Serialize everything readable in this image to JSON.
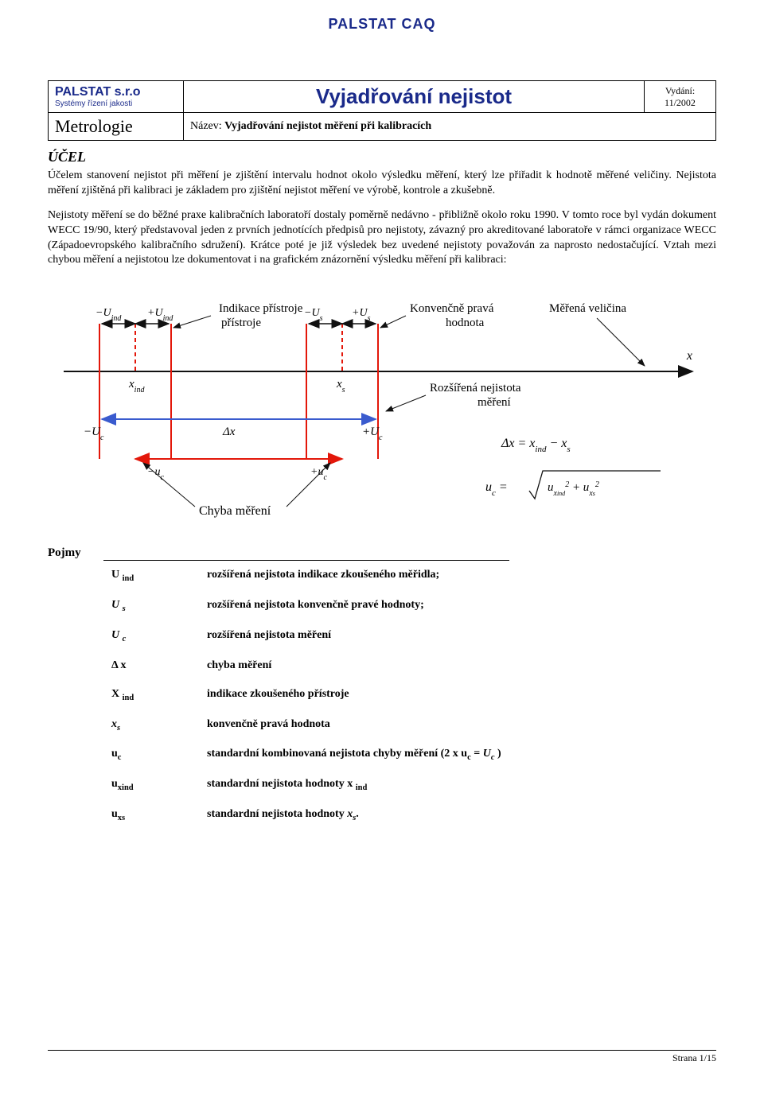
{
  "brand_header": "PALSTAT CAQ",
  "header": {
    "logo_company": "PALSTAT s.r.o",
    "logo_sub": "Systémy řízení jakosti",
    "doc_title": "Vyjadřování nejistot",
    "edition_label": "Vydání:",
    "edition_value": "11/2002",
    "metrologie": "Metrologie",
    "nazev_label": "Název:",
    "nazev_value": "Vyjadřování nejistot měření při kalibracích"
  },
  "sections": {
    "ucel_title": "ÚČEL",
    "ucel_p1": "Účelem stanovení nejistot při měření je zjištění intervalu hodnot okolo výsledku měření, který lze přiřadit k hodnotě měřené veličiny. Nejistota měření zjištěná při kalibraci je základem pro zjištění nejistot měření ve výrobě, kontrole a zkušebně.",
    "ucel_p2": "Nejistoty měření se do běžné praxe kalibračních laboratoří dostaly poměrně nedávno - přibližně okolo roku 1990. V tomto roce byl vydán dokument WECC 19/90, který představoval jeden z prvních jednotících předpisů pro nejistoty, závazný pro akreditované laboratoře v rámci organizace WECC (Západoevropského kalibračního sdružení). Krátce poté je již výsledek bez uvedené nejistoty považován za naprosto nedostačující. Vztah mezi chybou měření a nejistotou lze dokumentovat i na grafickém znázornění výsledku měření při kalibraci:"
  },
  "diagram": {
    "colors": {
      "red": "#e3170a",
      "blue": "#3a5bce",
      "black": "#111111",
      "gray": "#666666"
    },
    "labels": {
      "indikace_pristroje": "Indikace přístroje",
      "konvencne_prava_hodnota": "Konvenčně pravá hodnota",
      "merena_velicina": "Měřená veličina",
      "x_axis": "x",
      "x_ind": "x",
      "x_ind_sub": "ind",
      "x_s": "x",
      "x_s_sub": "s",
      "minus_Uind": "−U",
      "plus_Uind": "+U",
      "Uind_sub": "ind",
      "minus_Us": "−U",
      "plus_Us": "+U",
      "Us_sub": "s",
      "rozsirena_nejistota": "Rozšířená nejistota měření",
      "minus_Uc": "−U",
      "plus_Uc": "+U",
      "Uc_sub": "c",
      "delta_x": "Δx",
      "minus_uc": "−u",
      "plus_uc": "+u",
      "uc_sub": "c",
      "chyba_mereni": "Chyba měření",
      "eq_dx": "Δx = x",
      "eq_dx_ind": "ind",
      "eq_dx_mid": " − x",
      "eq_dx_s": "s",
      "eq_uc": "u",
      "eq_uc_c": "c",
      "eq_eq": " = ",
      "eq_sqrt_a": "u",
      "eq_sqrt_a_sub": "x",
      "eq_sqrt_a_subsub": "ind",
      "eq_sqrt_plus": " + ",
      "eq_sqrt_b": "u",
      "eq_sqrt_b_sub": "x",
      "eq_sqrt_b_subsub": "s",
      "eq_sq": "2"
    }
  },
  "pojmy_label": "Pojmy",
  "terms": [
    {
      "sym_html": "U <sub>ind</sub>",
      "desc": "rozšířená nejistota indikace zkoušeného měřidla;",
      "bold": true,
      "first": true
    },
    {
      "sym_html": "<i>U <sub>s</sub></i>",
      "desc": "rozšířená nejistota konvenčně pravé hodnoty;",
      "bold": true
    },
    {
      "sym_html": "<i>U <sub>c</sub></i>",
      "desc": "rozšířená nejistota měření",
      "bold": true
    },
    {
      "sym_html": "Δ x",
      "desc": "chyba měření",
      "bold": true
    },
    {
      "sym_html": "X <sub>ind</sub>",
      "desc": "indikace zkoušeného přístroje",
      "bold": true
    },
    {
      "sym_html": "<i>x<sub>s</sub></i>",
      "desc": "konvenčně pravá hodnota",
      "bold": true
    },
    {
      "sym_html": "u<sub>c</sub>",
      "desc": "standardní kombinovaná nejistota chyby měření (2 x u<sub>c</sub> = <i>U<sub>c</sub></i> )",
      "bold": true
    },
    {
      "sym_html": "u<sub>xind</sub>",
      "desc": "standardní nejistota hodnoty x <sub>ind</sub>",
      "bold": true
    },
    {
      "sym_html": "u<sub>xs</sub>",
      "desc": "standardní nejistota hodnoty <i>x<sub>s</sub></i>.",
      "bold": true
    }
  ],
  "footer": {
    "strana": "Strana",
    "page": "1/15"
  }
}
